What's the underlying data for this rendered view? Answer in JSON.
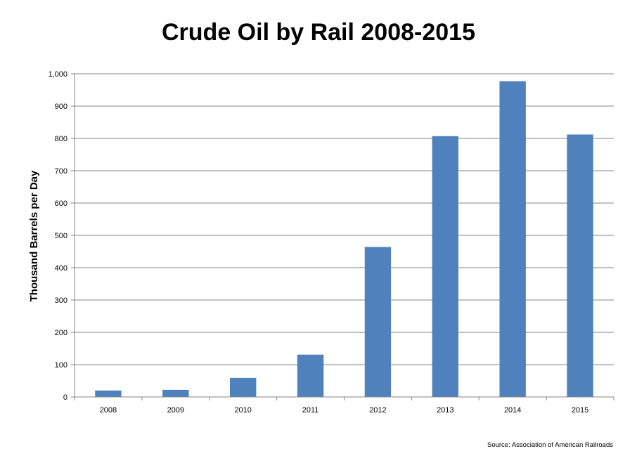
{
  "chart_data": {
    "type": "bar",
    "title": "Crude Oil by Rail 2008-2015",
    "xlabel": "",
    "ylabel": "Thousand Barrels per Day",
    "categories": [
      "2008",
      "2009",
      "2010",
      "2011",
      "2012",
      "2013",
      "2014",
      "2015"
    ],
    "values": [
      20,
      22,
      59,
      131,
      464,
      807,
      977,
      812
    ],
    "ylim": [
      0,
      1000
    ],
    "yticks": [
      0,
      100,
      200,
      300,
      400,
      500,
      600,
      700,
      800,
      900,
      1000
    ],
    "ytick_labels": [
      "0",
      "100",
      "200",
      "300",
      "400",
      "500",
      "600",
      "700",
      "800",
      "900",
      "1,000"
    ],
    "grid": true,
    "legend": "none",
    "bar_color": "#4F81BD",
    "gridline_color": "#868686",
    "source": "Source: Association of American Railroads"
  }
}
